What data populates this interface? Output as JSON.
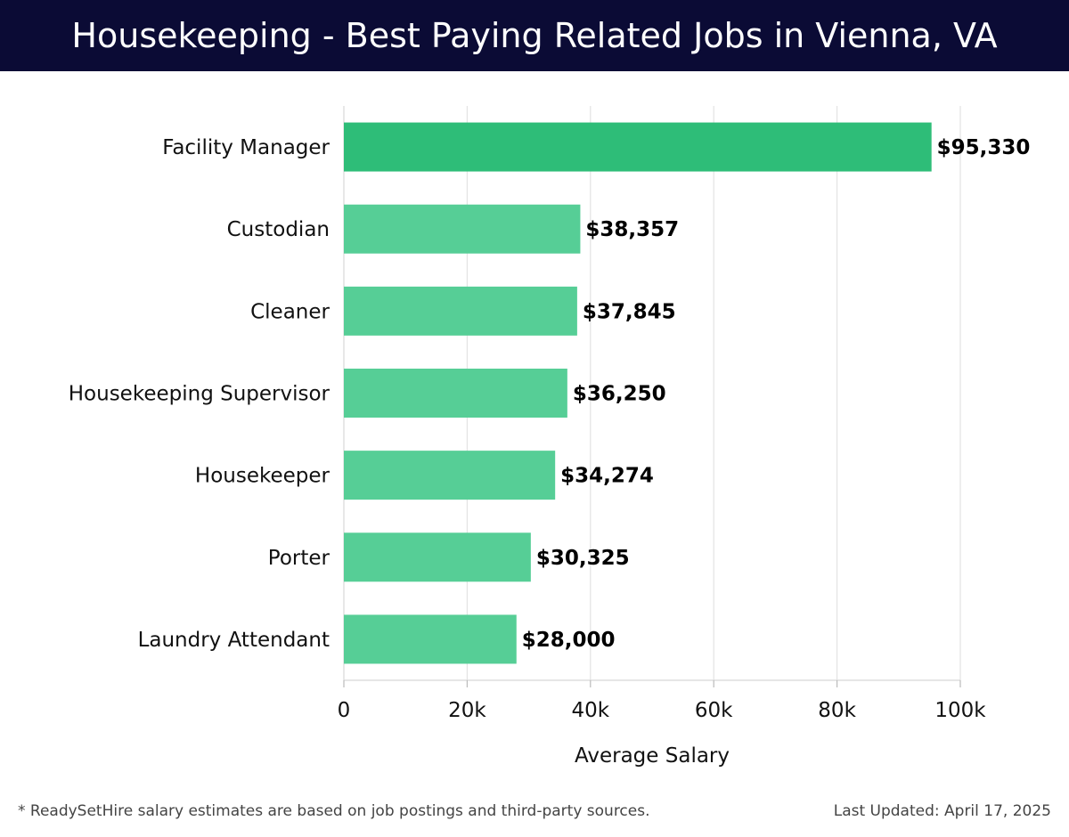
{
  "header": {
    "title": "Housekeeping - Best Paying Related Jobs in Vienna, VA",
    "background": "#0b0b35"
  },
  "chart_data": {
    "type": "bar",
    "orientation": "horizontal",
    "title": "Housekeeping - Best Paying Related Jobs in Vienna, VA",
    "xlabel": "Average Salary",
    "ylabel": "",
    "xlim": [
      0,
      100000
    ],
    "x_ticks": [
      0,
      20000,
      40000,
      60000,
      80000,
      100000
    ],
    "x_tick_labels": [
      "0",
      "20k",
      "40k",
      "60k",
      "80k",
      "100k"
    ],
    "grid": true,
    "categories": [
      "Facility Manager",
      "Custodian",
      "Cleaner",
      "Housekeeping Supervisor",
      "Housekeeper",
      "Porter",
      "Laundry Attendant"
    ],
    "values": [
      95330,
      38357,
      37845,
      36250,
      34274,
      30325,
      28000
    ],
    "value_labels": [
      "$95,330",
      "$38,357",
      "$37,845",
      "$36,250",
      "$34,274",
      "$30,325",
      "$28,000"
    ],
    "highlight_color": "#2ebd78",
    "bar_color": "#56ce96"
  },
  "footer": {
    "note": "* ReadySetHire salary estimates are based on job postings and third-party sources.",
    "updated": "Last Updated: April 17, 2025"
  }
}
